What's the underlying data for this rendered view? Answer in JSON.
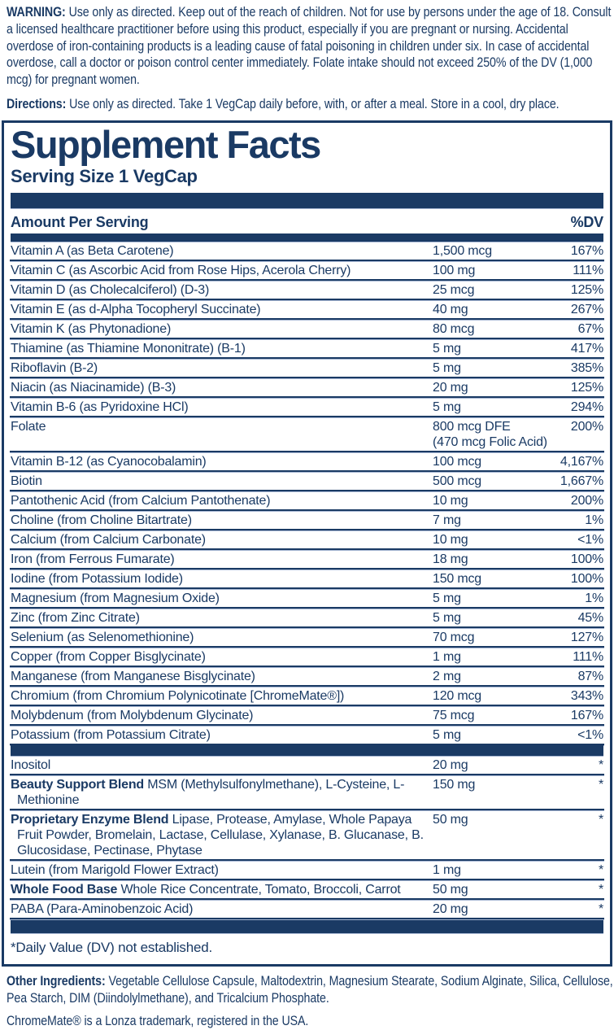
{
  "colors": {
    "navy": "#1a3a64",
    "divider_light": "#a6b6d2"
  },
  "warning": {
    "label": "WARNING:",
    "text": "Use only as directed.  Keep out of the reach of children. Not for use by persons under the age of 18.  Consult a licensed healthcare practitioner before using this product, especially if you are pregnant or nursing.  Accidental overdose of iron-containing products is a leading cause of fatal poisoning in children under six.  In case of accidental overdose, call a doctor or poison control center immediately. Folate intake should not exceed 250% of the DV (1,000 mcg) for pregnant women."
  },
  "directions": {
    "label": "Directions:",
    "text": "Use only as directed. Take 1 VegCap daily before, with, or after a meal. Store in a cool, dry place."
  },
  "panel": {
    "title": "Supplement Facts",
    "serving_size": "Serving Size 1 VegCap",
    "header": {
      "amount": "Amount Per Serving",
      "dv": "%DV"
    },
    "rows": [
      {
        "name": "Vitamin A (as Beta Carotene)",
        "amount": "1,500 mcg",
        "dv": "167%"
      },
      {
        "name": "Vitamin C (as Ascorbic Acid from Rose Hips, Acerola Cherry)",
        "amount": "100 mg",
        "dv": "111%"
      },
      {
        "name": "Vitamin D (as Cholecalciferol) (D-3)",
        "amount": "25 mcg",
        "dv": "125%"
      },
      {
        "name": "Vitamin E (as d-Alpha Tocopheryl Succinate)",
        "amount": "40 mg",
        "dv": "267%"
      },
      {
        "name": "Vitamin K (as Phytonadione)",
        "amount": "80 mcg",
        "dv": "67%"
      },
      {
        "name": "Thiamine (as Thiamine Mononitrate) (B-1)",
        "amount": "5 mg",
        "dv": "417%"
      },
      {
        "name": "Riboflavin (B-2)",
        "amount": "5 mg",
        "dv": "385%"
      },
      {
        "name": "Niacin (as Niacinamide) (B-3)",
        "amount": "20 mg",
        "dv": "125%"
      },
      {
        "name": "Vitamin B-6 (as Pyridoxine HCl)",
        "amount": "5 mg",
        "dv": "294%"
      },
      {
        "name": "Folate",
        "amount": "800 mcg DFE",
        "amount2": "(470 mcg Folic Acid)",
        "dv": "200%"
      },
      {
        "name": "Vitamin B-12 (as Cyanocobalamin)",
        "amount": "100 mcg",
        "dv": "4,167%"
      },
      {
        "name": "Biotin",
        "amount": "500 mcg",
        "dv": "1,667%"
      },
      {
        "name": "Pantothenic Acid (from Calcium Pantothenate)",
        "amount": "10 mg",
        "dv": "200%"
      },
      {
        "name": "Choline (from Choline Bitartrate)",
        "amount": "7 mg",
        "dv": "1%"
      },
      {
        "name": "Calcium (from Calcium Carbonate)",
        "amount": "10 mg",
        "dv": "<1%"
      },
      {
        "name": "Iron (from Ferrous Fumarate)",
        "amount": "18 mg",
        "dv": "100%"
      },
      {
        "name": "Iodine (from Potassium Iodide)",
        "amount": "150 mcg",
        "dv": "100%"
      },
      {
        "name": "Magnesium (from Magnesium Oxide)",
        "amount": "5 mg",
        "dv": "1%"
      },
      {
        "name": "Zinc (from Zinc Citrate)",
        "amount": "5 mg",
        "dv": "45%"
      },
      {
        "name": "Selenium (as Selenomethionine)",
        "amount": "70 mcg",
        "dv": "127%"
      },
      {
        "name": "Copper (from Copper Bisglycinate)",
        "amount": "1 mg",
        "dv": "111%"
      },
      {
        "name": "Manganese (from Manganese Bisglycinate)",
        "amount": "2 mg",
        "dv": "87%"
      },
      {
        "name": "Chromium (from Chromium Polynicotinate [ChromeMate®])",
        "amount": "120 mcg",
        "dv": "343%"
      },
      {
        "name": "Molybdenum (from Molybdenum Glycinate)",
        "amount": "75 mcg",
        "dv": "167%"
      },
      {
        "name": "Potassium (from Potassium Citrate)",
        "amount": "5 mg",
        "dv": "<1%"
      },
      {
        "type": "bar"
      },
      {
        "name": "Inositol",
        "amount": "20 mg",
        "dv": "*"
      },
      {
        "lead": "Beauty Support Blend",
        "name": "MSM (Methylsulfonylmethane), L-Cysteine, L-Methionine",
        "amount": "150 mg",
        "dv": "*"
      },
      {
        "lead": "Proprietary Enzyme Blend",
        "name": "Lipase, Protease, Amylase, Whole Papaya Fruit Powder, Bromelain, Lactase, Cellulase, Xylanase, B. Glucanase, B. Glucosidase, Pectinase, Phytase",
        "amount": "50 mg",
        "dv": "*"
      },
      {
        "name": "Lutein (from Marigold Flower Extract)",
        "amount": "1 mg",
        "dv": "*"
      },
      {
        "lead": "Whole Food Base",
        "name": "Whole Rice Concentrate, Tomato, Broccoli, Carrot",
        "amount": "50 mg",
        "dv": "*"
      },
      {
        "name": "PABA (Para-Aminobenzoic Acid)",
        "amount": "20 mg",
        "dv": "*"
      }
    ],
    "footnote": "*Daily Value (DV) not established."
  },
  "footer": {
    "other_label": "Other Ingredients:",
    "other_text": "Vegetable Cellulose Capsule, Maltodextrin, Magnesium Stearate, Sodium Alginate, Silica, Cellulose, Pea Starch, DIM (Diindolylmethane), and Tricalcium Phosphate.",
    "trademark": "ChromeMate® is a Lonza trademark, registered in the USA."
  }
}
